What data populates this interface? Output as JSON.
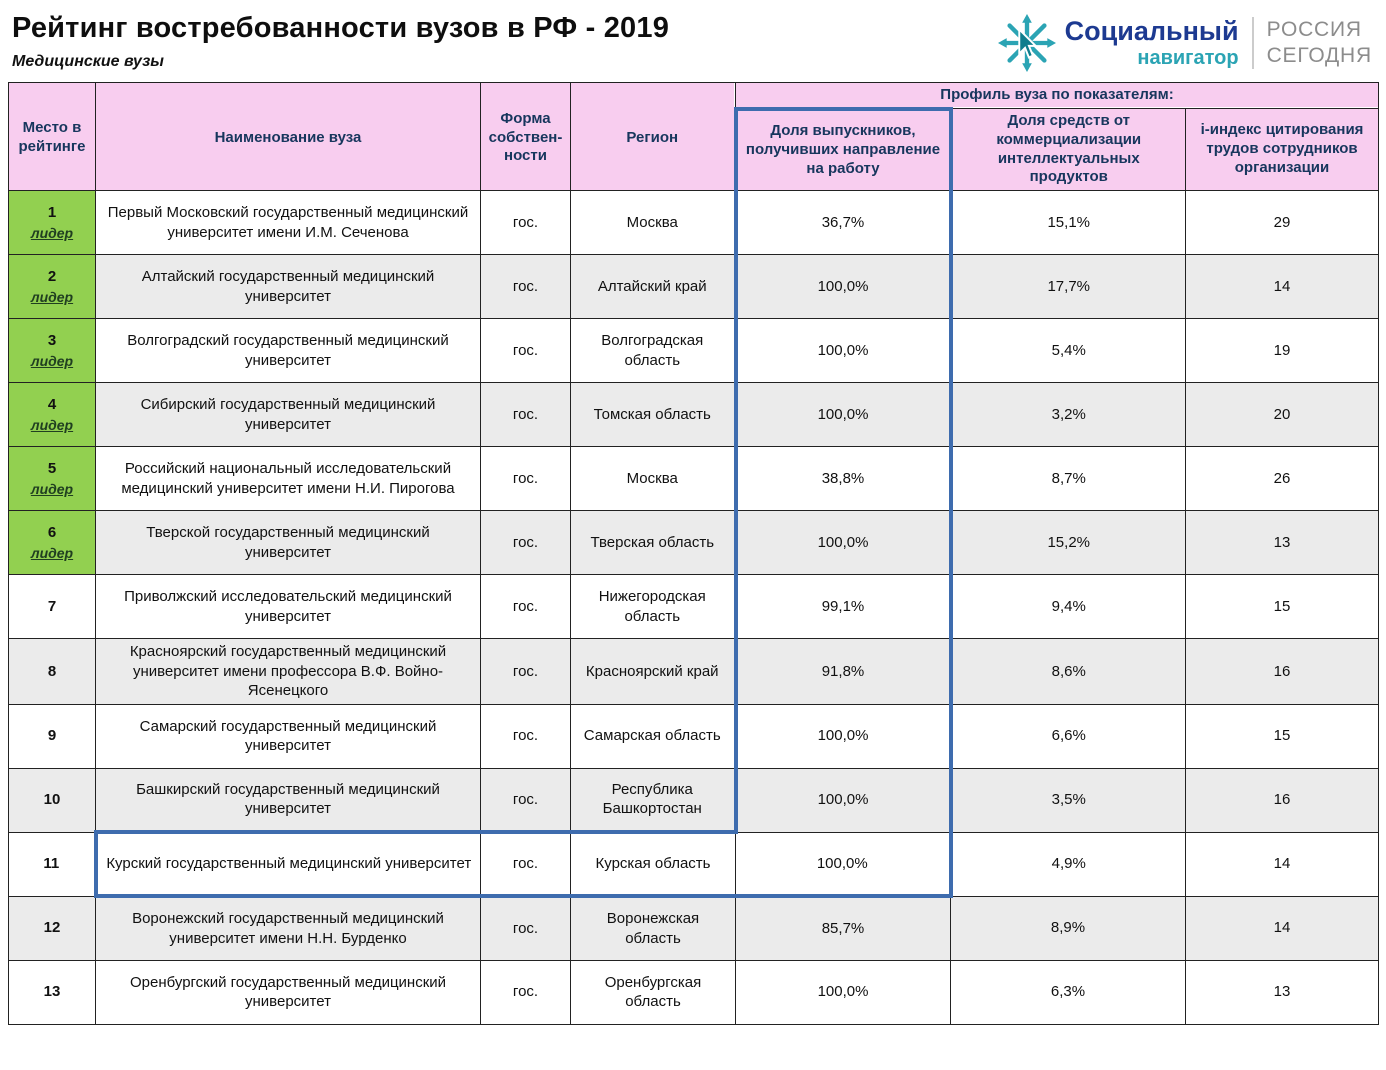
{
  "logo": {
    "brand_line1": "Социальный",
    "brand_line2": "навигатор",
    "agency_line1": "РОССИЯ",
    "agency_line2": "СЕГОДНЯ"
  },
  "chart_data": {
    "type": "table",
    "title": "Рейтинг востребованности вузов в РФ - 2019",
    "subtitle": "Медицинские вузы",
    "group_header": "Профиль вуза по показателям:",
    "columns": [
      "Место в рейтинге",
      "Наименование вуза",
      "Форма собствен- ности",
      "Регион",
      "Доля выпускников, получивших направление на работу",
      "Доля средств от коммерциализации интеллектуальных продуктов",
      "i-индекс цитирования трудов сотрудников организации"
    ],
    "leader_label": "лидер",
    "rows": [
      {
        "rank": "1",
        "leader": true,
        "name": "Первый Московский государственный медицинский университет имени И.М. Сеченова",
        "ownership": "гос.",
        "region": "Москва",
        "graduates": "36,7%",
        "commercial": "15,1%",
        "index": "29"
      },
      {
        "rank": "2",
        "leader": true,
        "name": "Алтайский государственный медицинский университет",
        "ownership": "гос.",
        "region": "Алтайский край",
        "graduates": "100,0%",
        "commercial": "17,7%",
        "index": "14"
      },
      {
        "rank": "3",
        "leader": true,
        "name": "Волгоградский государственный медицинский университет",
        "ownership": "гос.",
        "region": "Волгоградская область",
        "graduates": "100,0%",
        "commercial": "5,4%",
        "index": "19"
      },
      {
        "rank": "4",
        "leader": true,
        "name": "Сибирский государственный медицинский университет",
        "ownership": "гос.",
        "region": "Томская область",
        "graduates": "100,0%",
        "commercial": "3,2%",
        "index": "20"
      },
      {
        "rank": "5",
        "leader": true,
        "name": "Российский национальный исследовательский медицинский университет имени Н.И. Пирогова",
        "ownership": "гос.",
        "region": "Москва",
        "graduates": "38,8%",
        "commercial": "8,7%",
        "index": "26"
      },
      {
        "rank": "6",
        "leader": true,
        "name": "Тверской государственный медицинский университет",
        "ownership": "гос.",
        "region": "Тверская область",
        "graduates": "100,0%",
        "commercial": "15,2%",
        "index": "13"
      },
      {
        "rank": "7",
        "leader": false,
        "name": "Приволжский исследовательский медицинский университет",
        "ownership": "гос.",
        "region": "Нижегородская область",
        "graduates": "99,1%",
        "commercial": "9,4%",
        "index": "15"
      },
      {
        "rank": "8",
        "leader": false,
        "name": "Красноярский государственный медицинский университет имени профессора В.Ф. Войно-Ясенецкого",
        "ownership": "гос.",
        "region": "Красноярский край",
        "graduates": "91,8%",
        "commercial": "8,6%",
        "index": "16"
      },
      {
        "rank": "9",
        "leader": false,
        "name": "Самарский государственный медицинский университет",
        "ownership": "гос.",
        "region": "Самарская область",
        "graduates": "100,0%",
        "commercial": "6,6%",
        "index": "15"
      },
      {
        "rank": "10",
        "leader": false,
        "name": "Башкирский государственный медицинский университет",
        "ownership": "гос.",
        "region": "Республика Башкортостан",
        "graduates": "100,0%",
        "commercial": "3,5%",
        "index": "16"
      },
      {
        "rank": "11",
        "leader": false,
        "name": "Курский государственный медицинский университет",
        "ownership": "гос.",
        "region": "Курская область",
        "graduates": "100,0%",
        "commercial": "4,9%",
        "index": "14"
      },
      {
        "rank": "12",
        "leader": false,
        "name": "Воронежский государственный медицинский университет имени Н.Н. Бурденко",
        "ownership": "гос.",
        "region": "Воронежская область",
        "graduates": "85,7%",
        "commercial": "8,9%",
        "index": "14"
      },
      {
        "rank": "13",
        "leader": false,
        "name": "Оренбургский государственный медицинский университет",
        "ownership": "гос.",
        "region": "Оренбургская область",
        "graduates": "100,0%",
        "commercial": "6,3%",
        "index": "13"
      }
    ],
    "annotation": {
      "shape": "step-outline",
      "highlighted_column": "Доля выпускников, получивших направление на работу",
      "rows_covered": "1-11",
      "color": "#3e6cae"
    }
  },
  "colors": {
    "header_pink": "#f8cdef",
    "header_text_navy": "#17365d",
    "leader_green": "#92d050",
    "alt_row_gray": "#ebebeb",
    "highlight_blue": "#3e6cae",
    "brand_blue": "#1d3a91",
    "brand_teal": "#2ba4b4",
    "agency_gray": "#8c8c8c"
  }
}
